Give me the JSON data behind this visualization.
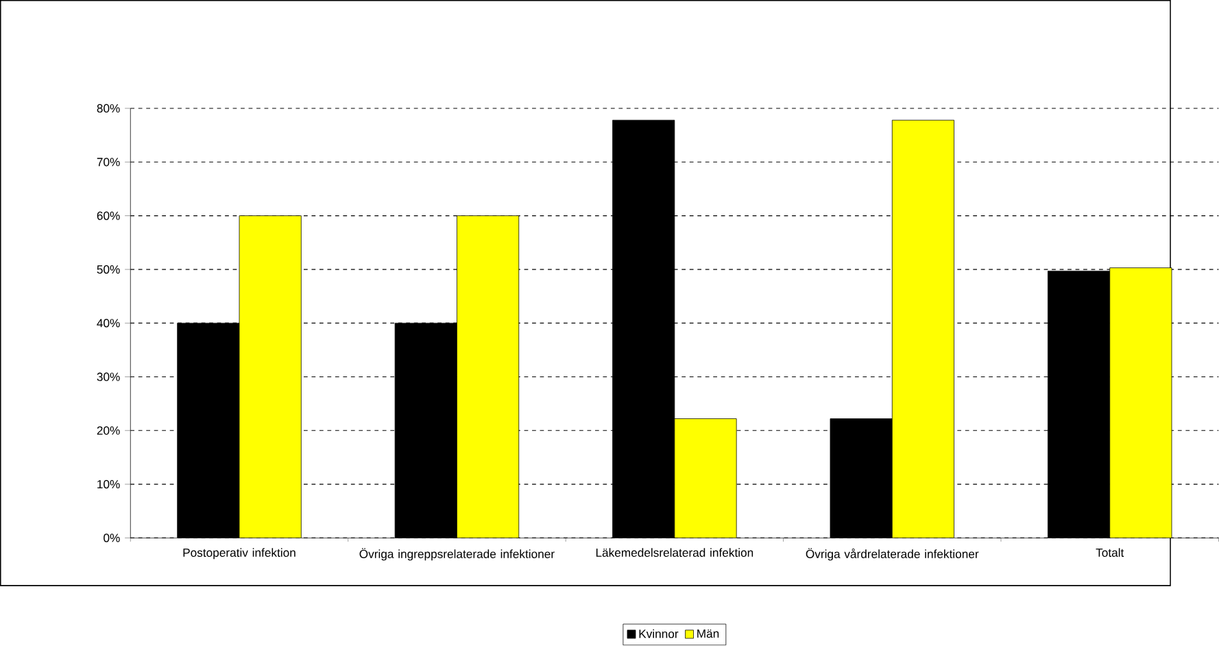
{
  "chart_data": {
    "type": "bar",
    "categories": [
      "Postoperativ infektion",
      "Övriga ingreppsrelaterade infektioner",
      "Läkemedelsrelaterad infektion",
      "Övriga vårdrelaterade infektioner",
      "Totalt"
    ],
    "series": [
      {
        "name": "Kvinnor",
        "color": "#000000",
        "values": [
          40,
          40,
          77.8,
          22.2,
          49.7
        ]
      },
      {
        "name": "Män",
        "color": "#ffff00",
        "values": [
          60,
          60,
          22.2,
          77.8,
          50.3
        ]
      }
    ],
    "ylim": [
      0,
      80
    ],
    "yticks": [
      {
        "value": 0,
        "label": "0%"
      },
      {
        "value": 10,
        "label": "10%"
      },
      {
        "value": 20,
        "label": "20%"
      },
      {
        "value": 30,
        "label": "30%"
      },
      {
        "value": 40,
        "label": "40%"
      },
      {
        "value": 50,
        "label": "50%"
      },
      {
        "value": 60,
        "label": "60%"
      },
      {
        "value": 70,
        "label": "70%"
      },
      {
        "value": 80,
        "label": "80%"
      }
    ],
    "grid": "y",
    "legend": "bottom"
  }
}
